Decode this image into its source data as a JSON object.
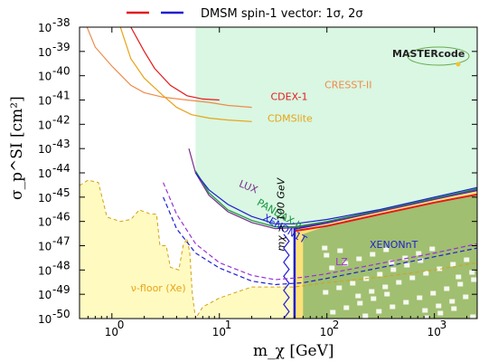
{
  "chart_data": {
    "type": "line",
    "xlabel": "m_χ [GeV]",
    "ylabel": "σ_p^SI [cm²]",
    "xscale": "log",
    "yscale": "log",
    "xlim": [
      0.5,
      2500
    ],
    "ylim": [
      1e-50,
      1e-38
    ],
    "x_ticks": [
      {
        "value": 1,
        "label": "10",
        "exp": "0"
      },
      {
        "value": 10,
        "label": "10",
        "exp": "1"
      },
      {
        "value": 100,
        "label": "10",
        "exp": "2"
      },
      {
        "value": 1000,
        "label": "10",
        "exp": "3"
      }
    ],
    "y_ticks": [
      {
        "value": 1e-38,
        "label": "10",
        "exp": "-38"
      },
      {
        "value": 1e-39,
        "label": "10",
        "exp": "-39"
      },
      {
        "value": 1e-40,
        "label": "10",
        "exp": "-40"
      },
      {
        "value": 1e-41,
        "label": "10",
        "exp": "-41"
      },
      {
        "value": 1e-42,
        "label": "10",
        "exp": "-42"
      },
      {
        "value": 1e-43,
        "label": "10",
        "exp": "-43"
      },
      {
        "value": 1e-44,
        "label": "10",
        "exp": "-44"
      },
      {
        "value": 1e-45,
        "label": "10",
        "exp": "-45"
      },
      {
        "value": 1e-46,
        "label": "10",
        "exp": "-46"
      },
      {
        "value": 1e-47,
        "label": "10",
        "exp": "-47"
      },
      {
        "value": 1e-48,
        "label": "10",
        "exp": "-48"
      },
      {
        "value": 1e-49,
        "label": "10",
        "exp": "-49"
      },
      {
        "value": 1e-50,
        "label": "10",
        "exp": "-50"
      }
    ],
    "legend": {
      "label": "DMSM spin-1 vector: 1σ, 2σ",
      "position": "top",
      "colors": [
        "#e41a1c",
        "#1f1fd1"
      ]
    },
    "logo": "MASTERcode",
    "series": [
      {
        "name": "CRESST-II",
        "color": "#f08a4b",
        "dashed": false,
        "points": [
          [
            0.55,
            2e-38
          ],
          [
            0.7,
            1.5e-39
          ],
          [
            1.0,
            2.5e-40
          ],
          [
            1.5,
            4e-41
          ],
          [
            2,
            2e-41
          ],
          [
            3,
            1.3e-41
          ],
          [
            5,
            1e-41
          ],
          [
            8,
            8e-42
          ],
          [
            12,
            6e-42
          ],
          [
            20,
            5e-42
          ]
        ]
      },
      {
        "name": "CDEX-1",
        "color": "#e41a1c",
        "dashed": false,
        "points": [
          [
            1.5,
            1e-38
          ],
          [
            2,
            1e-39
          ],
          [
            2.5,
            2e-40
          ],
          [
            3.5,
            4e-41
          ],
          [
            5,
            1.5e-41
          ],
          [
            7,
            1.1e-41
          ],
          [
            10,
            1e-41
          ]
        ]
      },
      {
        "name": "CDMSlite",
        "color": "#e8a317",
        "dashed": false,
        "points": [
          [
            1.2,
            1e-38
          ],
          [
            1.5,
            5e-40
          ],
          [
            2,
            8e-41
          ],
          [
            3,
            1.5e-41
          ],
          [
            4,
            5e-42
          ],
          [
            5.5,
            2.5e-42
          ],
          [
            8,
            1.8e-42
          ],
          [
            12,
            1.5e-42
          ],
          [
            20,
            1.3e-42
          ]
        ]
      },
      {
        "name": "LUX",
        "color": "#7b2d8b",
        "dashed": false,
        "points": [
          [
            5.2,
            1e-43
          ],
          [
            6,
            1e-44
          ],
          [
            8,
            1.2e-45
          ],
          [
            12,
            2.5e-46
          ],
          [
            20,
            9e-47
          ],
          [
            33,
            5e-47
          ],
          [
            50,
            5.5e-47
          ],
          [
            100,
            9e-47
          ],
          [
            300,
            2.5e-46
          ],
          [
            1000,
            8e-46
          ],
          [
            2500,
            2e-45
          ]
        ]
      },
      {
        "name": "PANDAX-II",
        "color": "#1a9641",
        "dashed": false,
        "points": [
          [
            6,
            1.2e-44
          ],
          [
            8,
            1.5e-45
          ],
          [
            12,
            3e-46
          ],
          [
            20,
            1.1e-46
          ],
          [
            33,
            6e-47
          ],
          [
            50,
            6e-47
          ],
          [
            100,
            1e-46
          ],
          [
            300,
            2.8e-46
          ],
          [
            1000,
            9e-46
          ],
          [
            2500,
            2.2e-45
          ]
        ]
      },
      {
        "name": "XENON1T",
        "color": "#1f1fd1",
        "dashed": false,
        "points": [
          [
            6,
            1e-44
          ],
          [
            8,
            2e-45
          ],
          [
            12,
            5e-46
          ],
          [
            20,
            1.6e-46
          ],
          [
            33,
            8e-47
          ],
          [
            50,
            8e-47
          ],
          [
            100,
            1.2e-46
          ],
          [
            300,
            3e-46
          ],
          [
            1000,
            1e-45
          ],
          [
            2500,
            2.5e-45
          ]
        ]
      },
      {
        "name": "LZ",
        "color": "#9b30d9",
        "dashed": true,
        "points": [
          [
            3,
            4e-45
          ],
          [
            4,
            2e-46
          ],
          [
            6,
            1.2e-47
          ],
          [
            10,
            2e-48
          ],
          [
            20,
            6e-49
          ],
          [
            33,
            4e-49
          ],
          [
            60,
            5e-49
          ],
          [
            100,
            7e-49
          ],
          [
            300,
            1.8e-48
          ],
          [
            1000,
            5e-48
          ],
          [
            2500,
            1.2e-47
          ]
        ]
      },
      {
        "name": "XENONnT",
        "color": "#1f1fd1",
        "dashed": true,
        "points": [
          [
            3,
            1e-45
          ],
          [
            4,
            5e-47
          ],
          [
            6,
            5e-48
          ],
          [
            10,
            1.2e-48
          ],
          [
            20,
            3.5e-49
          ],
          [
            33,
            2.5e-49
          ],
          [
            60,
            3e-49
          ],
          [
            100,
            4.5e-49
          ],
          [
            300,
            1.2e-48
          ],
          [
            1000,
            3.5e-48
          ],
          [
            2500,
            8e-48
          ]
        ]
      }
    ],
    "neutrino_floor": {
      "name": "ν-floor (Xe)",
      "points": [
        [
          0.5,
          3e-45
        ],
        [
          0.6,
          5e-45
        ],
        [
          0.75,
          4e-45
        ],
        [
          0.9,
          1.5e-46
        ],
        [
          1.2,
          1e-46
        ],
        [
          1.5,
          1.2e-46
        ],
        [
          1.8,
          3e-46
        ],
        [
          2,
          2.5e-46
        ],
        [
          2.3,
          2e-46
        ],
        [
          2.6,
          2e-46
        ],
        [
          2.8,
          1e-47
        ],
        [
          3.2,
          1e-47
        ],
        [
          3.5,
          1.3e-48
        ],
        [
          4.2,
          1e-48
        ],
        [
          4.6,
          1e-47
        ],
        [
          5,
          2e-47
        ],
        [
          5.3,
          5e-48
        ],
        [
          5.6,
          1e-49
        ],
        [
          6,
          1e-50
        ],
        [
          7,
          3e-50
        ],
        [
          10,
          7e-50
        ],
        [
          20,
          2e-49
        ],
        [
          50,
          2e-49
        ],
        [
          100,
          3e-49
        ],
        [
          300,
          5e-49
        ],
        [
          1000,
          1e-48
        ],
        [
          2500,
          2e-48
        ]
      ]
    },
    "excluded_region": {
      "xmin": 6,
      "upper": 1e-38
    },
    "best_fit_region": {
      "upper_2sigma": [
        [
          50,
          5e-47
        ],
        [
          100,
          9e-47
        ],
        [
          300,
          2.7e-46
        ],
        [
          1000,
          8.5e-46
        ],
        [
          2500,
          2e-45
        ]
      ],
      "upper_1sigma": [
        [
          50,
          4e-47
        ],
        [
          100,
          6.5e-47
        ],
        [
          300,
          1.9e-46
        ],
        [
          1000,
          6e-46
        ],
        [
          2500,
          1.3e-45
        ]
      ],
      "xmin": 50
    },
    "annotations": [
      {
        "text": "CRESST-II",
        "x": 95,
        "y": 3e-41,
        "color": "#f08a4b"
      },
      {
        "text": "CDEX-1",
        "x": 30,
        "y": 1e-41,
        "color": "#e41a1c"
      },
      {
        "text": "CDMSlite",
        "x": 28,
        "y": 1.3e-42,
        "color": "#e8a317"
      },
      {
        "text": "LUX",
        "x": 15,
        "y": 2.8e-45,
        "color": "#7b2d8b"
      },
      {
        "text": "PANDAX-II",
        "x": 22,
        "y": 5e-46,
        "color": "#1a9641"
      },
      {
        "text": "XENON1T",
        "x": 25,
        "y": 1.2e-46,
        "color": "#1f1fd1"
      },
      {
        "text": "XENONnT",
        "x": 250,
        "y": 8e-48,
        "color": "#1f1fd1"
      },
      {
        "text": "LZ",
        "x": 120,
        "y": 1.6e-48,
        "color": "#9b30d9"
      },
      {
        "text": "ν-floor (Xe)",
        "x": 1.5,
        "y": 1.3e-49,
        "color": "#e8a317"
      },
      {
        "text": "m_χ > 100 GeV",
        "x": 40,
        "y": 6e-48,
        "color": "#000000"
      }
    ]
  }
}
